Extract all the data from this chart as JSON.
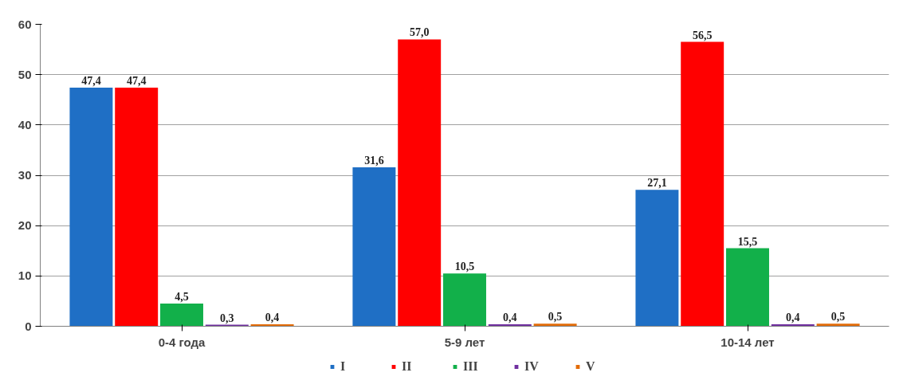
{
  "chart_data": {
    "type": "bar",
    "categories": [
      "0-4 года",
      "5-9 лет",
      "10-14 лет"
    ],
    "series": [
      {
        "name": "I",
        "color": "#1f6fc5",
        "values": [
          47.4,
          31.6,
          27.1
        ],
        "value_labels": [
          "47,4",
          "31,6",
          "27,1"
        ]
      },
      {
        "name": "II",
        "color": "#ff0000",
        "values": [
          47.4,
          57.0,
          56.5
        ],
        "value_labels": [
          "47,4",
          "57,0",
          "56,5"
        ]
      },
      {
        "name": "III",
        "color": "#12b04a",
        "values": [
          4.5,
          10.5,
          15.5
        ],
        "value_labels": [
          "4,5",
          "10,5",
          "15,5"
        ]
      },
      {
        "name": "IV",
        "color": "#7030a0",
        "values": [
          0.3,
          0.4,
          0.4
        ],
        "value_labels": [
          "0,3",
          "0,4",
          "0,4"
        ]
      },
      {
        "name": "V",
        "color": "#e36c09",
        "values": [
          0.4,
          0.5,
          0.5
        ],
        "value_labels": [
          "0,4",
          "0,5",
          "0,5"
        ]
      }
    ],
    "ylim": [
      0,
      60
    ],
    "yticks": [
      0,
      10,
      20,
      30,
      40,
      50,
      60
    ],
    "grid": "y",
    "legend": "bottom"
  }
}
